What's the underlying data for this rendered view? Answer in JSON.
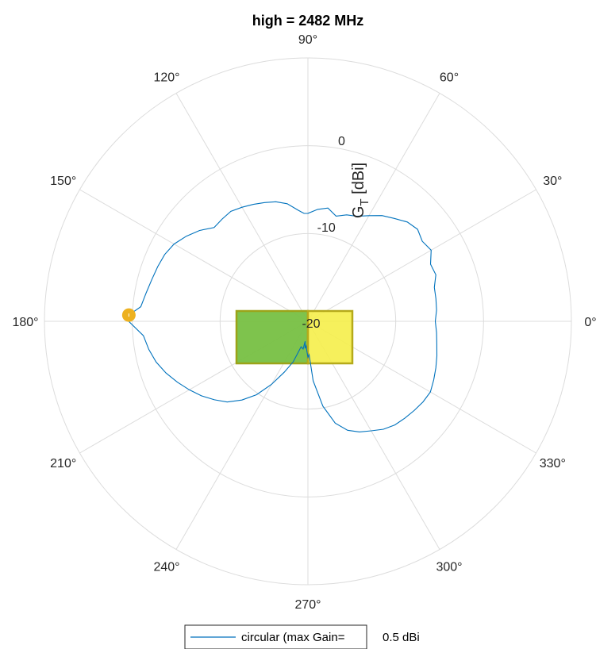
{
  "chart_data": {
    "type": "polar-line",
    "title": "high = 2482 MHz",
    "radial_label_main": "G",
    "radial_label_sub": "T",
    "radial_label_unit": "[dBi]",
    "r_min": -20,
    "r_max": 10,
    "r_ticks": [
      -20,
      -10,
      0
    ],
    "r_tick_labels": [
      "-20",
      "-10",
      "0"
    ],
    "angle_ticks": [
      0,
      30,
      60,
      90,
      120,
      150,
      180,
      210,
      240,
      270,
      300,
      330
    ],
    "angle_tick_labels": [
      "0°",
      "30°",
      "60°",
      "90°",
      "120°",
      "150°",
      "180°",
      "210°",
      "240°",
      "270°",
      "300°",
      "330°"
    ],
    "grid": true,
    "legend_position": "bottom",
    "series": [
      {
        "name": "circular (max Gain=",
        "color": "#0072BD",
        "theta": [
          0,
          5,
          10,
          15,
          20,
          25,
          30,
          35,
          40,
          45,
          50,
          55,
          60,
          65,
          70,
          75,
          80,
          85,
          90,
          92,
          95,
          100,
          105,
          110,
          115,
          120,
          125,
          130,
          135,
          140,
          145,
          150,
          155,
          160,
          165,
          170,
          175,
          178,
          180,
          185,
          190,
          195,
          200,
          205,
          210,
          215,
          220,
          225,
          230,
          235,
          240,
          245,
          250,
          255,
          260,
          262,
          264,
          266,
          268,
          270,
          272,
          275,
          280,
          285,
          290,
          295,
          300,
          305,
          310,
          315,
          320,
          325,
          330,
          335,
          340,
          345,
          350,
          355,
          360
        ],
        "r": [
          -5.5,
          -5.3,
          -5.2,
          -5.1,
          -4.5,
          -4.6,
          -3.8,
          -4.1,
          -3.7,
          -4.0,
          -4.7,
          -5.3,
          -6.1,
          -6.8,
          -7.1,
          -7.6,
          -6.9,
          -7.2,
          -7.7,
          -7.7,
          -7.3,
          -6.4,
          -5.9,
          -5.6,
          -5.3,
          -5.0,
          -4.7,
          -4.8,
          -4.9,
          -3.9,
          -3.1,
          -2.4,
          -2.0,
          -1.8,
          -1.6,
          -1.3,
          -0.9,
          0.4,
          0.4,
          -1.2,
          -1.6,
          -2.1,
          -2.8,
          -3.6,
          -4.4,
          -5.2,
          -6.1,
          -7.0,
          -8.3,
          -9.8,
          -11.7,
          -13.6,
          -15.1,
          -17.0,
          -16.8,
          -17.7,
          -16.9,
          -17.2,
          -16.6,
          -15.9,
          -16.2,
          -13.2,
          -10.2,
          -8.0,
          -6.8,
          -6.1,
          -5.6,
          -5.0,
          -4.6,
          -4.4,
          -4.2,
          -4.0,
          -3.9,
          -4.2,
          -4.5,
          -4.8,
          -5.1,
          -5.3,
          -5.5
        ]
      }
    ],
    "max_gain_value": "0.5 dBi",
    "marker": {
      "theta": 178,
      "r": 0.4,
      "color": "#EDB120"
    },
    "rect_green": {
      "theta_from": 180,
      "r_from": -20,
      "label_color": "#77AC30"
    },
    "rect_yellow": {
      "label_color": "#FFFF00"
    }
  }
}
